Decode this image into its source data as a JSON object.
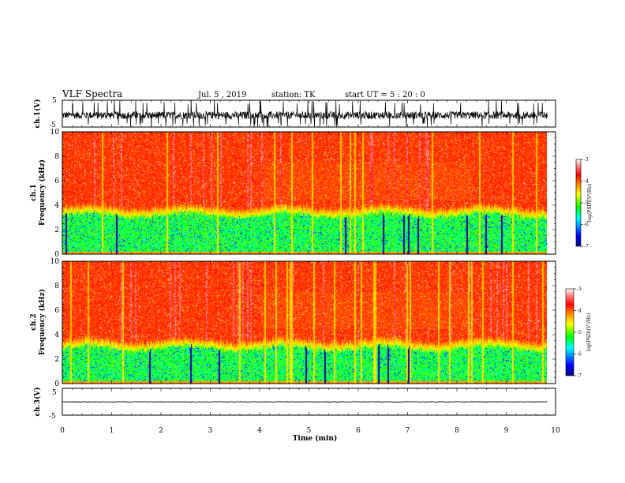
{
  "chart_data": {
    "type": "heatmap",
    "header": {
      "title": "VLF Spectra",
      "date": "Jul. 5 , 2019",
      "station": "station: TK",
      "start": "start UT = 5 : 20 : 0"
    },
    "x_axis": {
      "label": "Time (min)",
      "range": [
        0,
        10
      ],
      "ticks": [
        "0",
        "1",
        "2",
        "3",
        "4",
        "5",
        "6",
        "7",
        "8",
        "9",
        "10"
      ],
      "data_end": 9.83
    },
    "panels": [
      {
        "id": "waveform-ch1",
        "type": "line",
        "ylabel": "ch.1(V)",
        "ylim": [
          -5,
          5
        ],
        "yticks": [
          "5",
          "-5"
        ],
        "noise_amplitude": 1.4,
        "spike_amplitude": 5
      },
      {
        "id": "spectrogram-ch1",
        "type": "heatmap",
        "ylabel_line1": "ch.1",
        "ylabel_line2": "Frequency (kHz)",
        "ylim": [
          0,
          10
        ],
        "yticks": [
          "0",
          "2",
          "4",
          "6",
          "8",
          "10"
        ],
        "low_band_top_khz": 3.2,
        "colorbar": {
          "label": "log(PSD)(V²/Hz)",
          "range": [
            -7,
            -3
          ],
          "ticks": [
            "-3",
            "-4",
            "-5",
            "-6",
            "-7"
          ]
        }
      },
      {
        "id": "spectrogram-ch2",
        "type": "heatmap",
        "ylabel_line1": "ch.2",
        "ylabel_line2": "Frequency (kHz)",
        "ylim": [
          0,
          10
        ],
        "yticks": [
          "0",
          "2",
          "4",
          "6",
          "8",
          "10"
        ],
        "low_band_top_khz": 2.9,
        "colorbar": {
          "label": "log(PSD)(V²/Hz)",
          "range": [
            -7,
            -3
          ],
          "ticks": [
            "-3",
            "-4",
            "-5",
            "-6",
            "-7"
          ]
        }
      },
      {
        "id": "waveform-ch3",
        "type": "line",
        "ylabel": "ch.3(V)",
        "ylim": [
          -5,
          5
        ],
        "yticks": [
          "5",
          "-5"
        ],
        "baseline_v": 0,
        "noise_amplitude": 0.12
      }
    ],
    "colormap": [
      "#000080",
      "#0000ff",
      "#00ffff",
      "#00ff00",
      "#ffff00",
      "#ff8000",
      "#ff0000",
      "#ffffff"
    ]
  }
}
